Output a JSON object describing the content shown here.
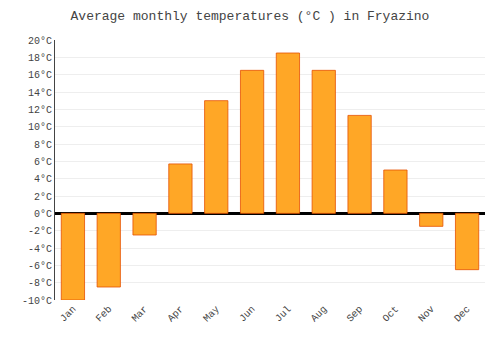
{
  "chart_data": {
    "type": "bar",
    "title": "Average monthly temperatures (°C ) in Fryazino",
    "categories": [
      "Jan",
      "Feb",
      "Mar",
      "Apr",
      "May",
      "Jun",
      "Jul",
      "Aug",
      "Sep",
      "Oct",
      "Nov",
      "Dec"
    ],
    "values": [
      -10,
      -8.5,
      -2.5,
      5.7,
      13,
      16.5,
      18.5,
      16.5,
      11.3,
      5,
      -1.5,
      -6.5
    ],
    "color": "#FFA726",
    "ylim": [
      -10,
      20
    ],
    "yticks": [
      {
        "value": -10,
        "label": "-10°C"
      },
      {
        "value": -8,
        "label": "-8°C"
      },
      {
        "value": -6,
        "label": "-6°C"
      },
      {
        "value": -4,
        "label": "-4°C"
      },
      {
        "value": -2,
        "label": "-2°C"
      },
      {
        "value": 0,
        "label": "0°C"
      },
      {
        "value": 2,
        "label": "2°C"
      },
      {
        "value": 4,
        "label": "4°C"
      },
      {
        "value": 6,
        "label": "6°C"
      },
      {
        "value": 8,
        "label": "8°C"
      },
      {
        "value": 10,
        "label": "10°C"
      },
      {
        "value": 12,
        "label": "12°C"
      },
      {
        "value": 14,
        "label": "14°C"
      },
      {
        "value": 16,
        "label": "16°C"
      },
      {
        "value": 18,
        "label": "18°C"
      },
      {
        "value": 20,
        "label": "20°C"
      }
    ],
    "grid": true
  }
}
